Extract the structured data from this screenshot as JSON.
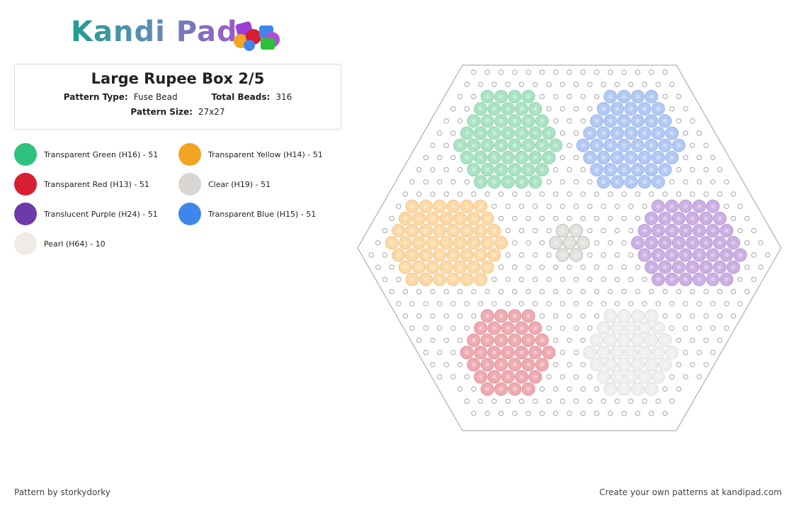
{
  "logo": "Kandi Pad",
  "header": {
    "title": "Large Rupee Box 2/5",
    "fields": [
      {
        "label": "Pattern Type:",
        "value": "Fuse Bead"
      },
      {
        "label": "Total Beads:",
        "value": "316"
      },
      {
        "label": "Pattern Size:",
        "value": "27x27"
      }
    ]
  },
  "legend": [
    {
      "label": "Transparent Green (H16) - 51",
      "color": "#2ec27e"
    },
    {
      "label": "Transparent Yellow (H14) - 51",
      "color": "#f2a523"
    },
    {
      "label": "Transparent Red (H13) - 51",
      "color": "#d81e33"
    },
    {
      "label": "Clear (H19) - 51",
      "color": "#d8d5d2"
    },
    {
      "label": "Translucent Purple (H24) - 51",
      "color": "#6e3aab"
    },
    {
      "label": "Transparent Blue (H15) - 51",
      "color": "#3f86ec"
    },
    {
      "label": "Pearl (H64) - 10",
      "color": "#efebe5"
    }
  ],
  "footer": {
    "credit": "Pattern by storkydorky",
    "promo": "Create your own patterns at kandipad.com"
  }
}
